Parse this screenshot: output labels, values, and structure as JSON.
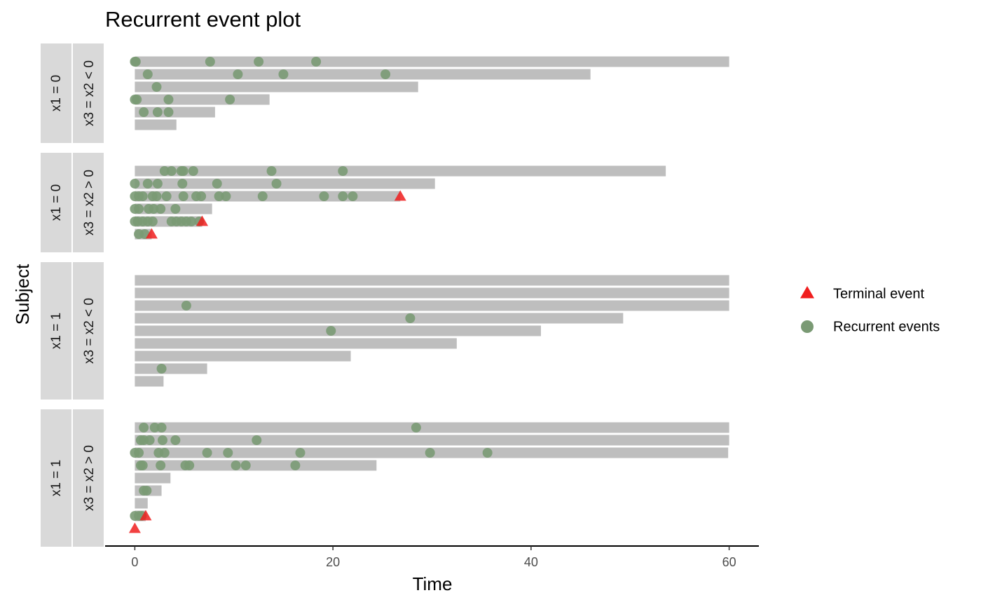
{
  "chart_data": {
    "type": "recurrent_event",
    "title": "Recurrent event plot",
    "xlabel": "Time",
    "ylabel": "Subject",
    "xlim": [
      -3,
      63
    ],
    "xticks": [
      0,
      20,
      40,
      60
    ],
    "bar_color": "#bebebe",
    "series": [
      {
        "name": "Terminal event",
        "color": "#f01e1e"
      },
      {
        "name": "Recurrent events",
        "color": "#7a9a74"
      }
    ],
    "panels": [
      {
        "strips": [
          "x1 = 0",
          "x3 = x2 < 0"
        ],
        "subjects": [
          {
            "end": 60,
            "events": [
              0,
              0.1,
              7.6,
              12.5,
              18.3
            ]
          },
          {
            "end": 46.0,
            "events": [
              1.3,
              10.4,
              15.0,
              25.3
            ]
          },
          {
            "end": 28.6,
            "events": [
              2.2
            ]
          },
          {
            "end": 13.6,
            "events": [
              0,
              0.2,
              3.4,
              9.6
            ]
          },
          {
            "end": 8.1,
            "events": [
              0.9,
              2.3,
              3.4
            ]
          },
          {
            "end": 4.2,
            "events": []
          }
        ]
      },
      {
        "strips": [
          "x1 = 0",
          "x3 = x2 > 0"
        ],
        "subjects": [
          {
            "end": 53.6,
            "events": [
              3.0,
              3.7,
              4.7,
              4.9,
              5.9,
              13.8,
              21.0
            ]
          },
          {
            "end": 30.3,
            "events": [
              0,
              1.3,
              2.3,
              4.8,
              8.3,
              14.3
            ]
          },
          {
            "end": 26.8,
            "terminal": 26.8,
            "events": [
              0,
              0.4,
              0.8,
              1.8,
              2.2,
              3.2,
              4.9,
              6.2,
              6.7,
              8.5,
              9.2,
              12.9,
              19.1,
              21.0,
              22.0
            ]
          },
          {
            "end": 7.8,
            "events": [
              0,
              0.4,
              1.4,
              1.9,
              2.6,
              4.1
            ]
          },
          {
            "end": 6.8,
            "terminal": 6.8,
            "events": [
              0,
              0.3,
              0.8,
              1.3,
              1.8,
              3.7,
              4.2,
              4.7,
              5.2,
              5.7,
              6.5
            ]
          },
          {
            "end": 1.7,
            "terminal": 1.7,
            "events": [
              0.4,
              1.0
            ]
          }
        ]
      },
      {
        "strips": [
          "x1 = 1",
          "x3 = x2 < 0"
        ],
        "subjects": [
          {
            "end": 60,
            "events": []
          },
          {
            "end": 60,
            "events": []
          },
          {
            "end": 60,
            "events": [
              5.2
            ]
          },
          {
            "end": 49.3,
            "events": [
              27.8
            ]
          },
          {
            "end": 41.0,
            "events": [
              19.8
            ]
          },
          {
            "end": 32.5,
            "events": []
          },
          {
            "end": 21.8,
            "events": []
          },
          {
            "end": 7.3,
            "events": [
              2.7
            ]
          },
          {
            "end": 2.9,
            "events": []
          }
        ]
      },
      {
        "strips": [
          "x1 = 1",
          "x3 = x2 > 0"
        ],
        "subjects": [
          {
            "end": 60,
            "events": [
              0.9,
              2.0,
              2.7,
              28.4
            ]
          },
          {
            "end": 60,
            "events": [
              0.6,
              0.9,
              1.5,
              2.8,
              4.1,
              12.3
            ]
          },
          {
            "end": 59.9,
            "events": [
              0,
              0.4,
              2.4,
              3.0,
              7.3,
              9.4,
              16.7,
              29.8,
              35.6
            ]
          },
          {
            "end": 24.4,
            "events": [
              0.6,
              0.8,
              2.6,
              5.1,
              5.5,
              10.2,
              11.2,
              16.2
            ]
          },
          {
            "end": 3.6,
            "events": []
          },
          {
            "end": 2.7,
            "events": [
              0.9,
              1.2
            ]
          },
          {
            "end": 1.3,
            "events": []
          },
          {
            "end": 1.1,
            "terminal": 1.1,
            "events": [
              0,
              0.4,
              0.7
            ]
          },
          {
            "end": 0,
            "terminal": 0,
            "events": []
          }
        ]
      }
    ]
  }
}
